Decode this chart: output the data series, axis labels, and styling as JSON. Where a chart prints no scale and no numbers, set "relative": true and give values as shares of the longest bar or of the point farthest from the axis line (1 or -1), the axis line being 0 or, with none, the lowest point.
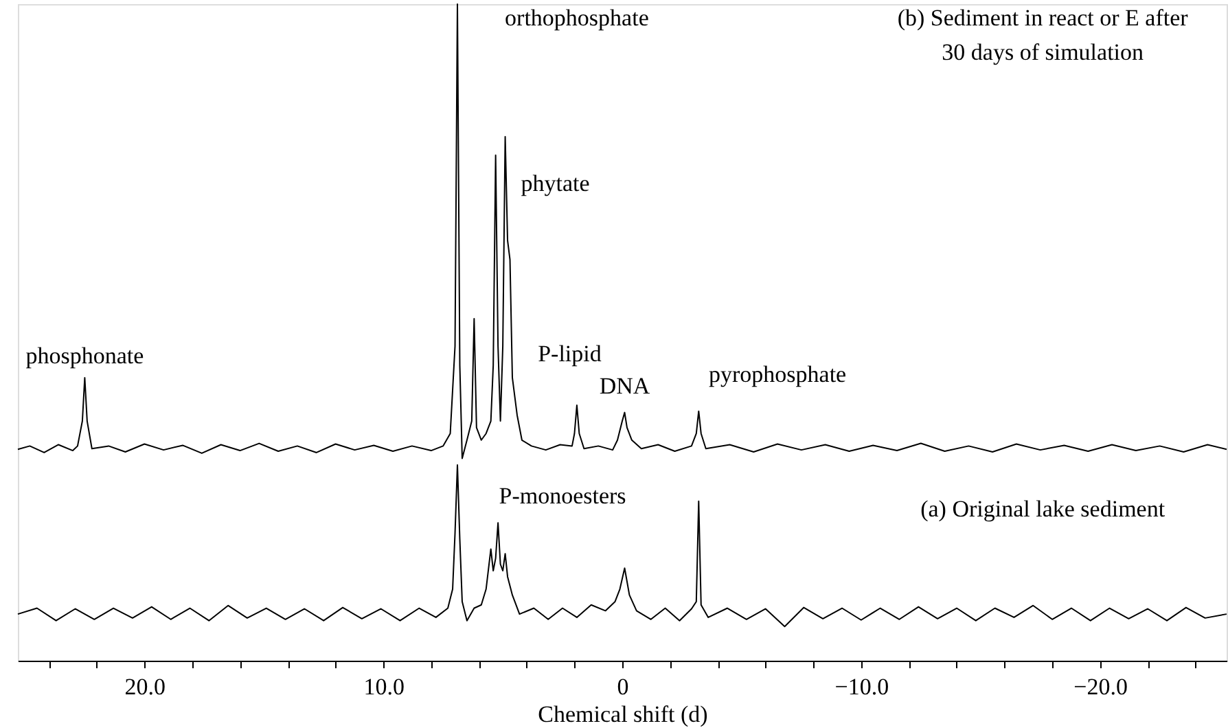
{
  "chart_data": {
    "type": "line",
    "relative": true,
    "xlabel": "Chemical shift (d)",
    "legend": false,
    "grid": false,
    "xlim": [
      25.3,
      -25.3
    ],
    "xticks": [
      {
        "value": 24,
        "label": null
      },
      {
        "value": 22,
        "label": null
      },
      {
        "value": 20,
        "label": "20.0"
      },
      {
        "value": 18,
        "label": null
      },
      {
        "value": 16,
        "label": null
      },
      {
        "value": 14,
        "label": null
      },
      {
        "value": 12,
        "label": null
      },
      {
        "value": 10,
        "label": "10.0"
      },
      {
        "value": 8,
        "label": null
      },
      {
        "value": 6,
        "label": null
      },
      {
        "value": 4,
        "label": null
      },
      {
        "value": 2,
        "label": null
      },
      0,
      {
        "value": -2,
        "label": null
      },
      {
        "value": -4,
        "label": null
      },
      {
        "value": -6,
        "label": null
      },
      {
        "value": -8,
        "label": null
      },
      {
        "value": -10,
        "label": "−10.0"
      },
      {
        "value": -12,
        "label": null
      },
      {
        "value": -14,
        "label": null
      },
      {
        "value": -16,
        "label": null
      },
      {
        "value": -18,
        "label": null
      },
      {
        "value": -20,
        "label": "−20.0"
      },
      {
        "value": -22,
        "label": null
      },
      {
        "value": -24,
        "label": null
      }
    ],
    "series": [
      {
        "color": "#000000",
        "x": [
          25.3,
          24.8,
          24.2,
          23.6,
          23.0,
          22.8,
          22.6,
          22.5,
          22.4,
          22.2,
          21.5,
          20.8,
          20.0,
          19.2,
          18.4,
          17.6,
          16.8,
          16.0,
          15.2,
          14.4,
          13.6,
          12.8,
          12.0,
          11.2,
          10.4,
          9.6,
          8.8,
          8.0,
          7.5,
          7.2,
          7.0,
          6.9,
          6.8,
          6.7,
          6.5,
          6.3,
          6.2,
          6.1,
          5.9,
          5.7,
          5.5,
          5.4,
          5.3,
          5.2,
          5.1,
          5.0,
          4.9,
          4.8,
          4.7,
          4.6,
          4.4,
          4.2,
          3.8,
          3.2,
          2.6,
          2.1,
          2.0,
          1.9,
          1.8,
          1.6,
          1.0,
          0.4,
          0.2,
          0.0,
          -0.1,
          -0.2,
          -0.4,
          -0.8,
          -1.5,
          -2.2,
          -2.9,
          -3.1,
          -3.2,
          -3.3,
          -3.5,
          -4.5,
          -5.5,
          -6.5,
          -7.5,
          -8.5,
          -9.5,
          -10.5,
          -11.5,
          -12.5,
          -13.5,
          -14.5,
          -15.5,
          -16.5,
          -17.5,
          -18.5,
          -19.5,
          -20.5,
          -21.5,
          -22.5,
          -23.5,
          -24.5,
          -25.3
        ],
        "values": [
          0.322,
          0.327,
          0.317,
          0.329,
          0.32,
          0.327,
          0.365,
          0.431,
          0.365,
          0.323,
          0.327,
          0.318,
          0.33,
          0.321,
          0.328,
          0.316,
          0.329,
          0.32,
          0.331,
          0.319,
          0.327,
          0.317,
          0.33,
          0.321,
          0.328,
          0.319,
          0.327,
          0.32,
          0.327,
          0.346,
          0.479,
          1.0,
          0.45,
          0.308,
          0.336,
          0.365,
          0.521,
          0.355,
          0.336,
          0.346,
          0.365,
          0.45,
          0.77,
          0.479,
          0.365,
          0.479,
          0.798,
          0.64,
          0.611,
          0.431,
          0.374,
          0.336,
          0.327,
          0.321,
          0.329,
          0.327,
          0.346,
          0.389,
          0.346,
          0.323,
          0.327,
          0.321,
          0.336,
          0.365,
          0.378,
          0.355,
          0.336,
          0.323,
          0.329,
          0.319,
          0.327,
          0.346,
          0.38,
          0.346,
          0.323,
          0.329,
          0.318,
          0.33,
          0.321,
          0.329,
          0.319,
          0.328,
          0.32,
          0.331,
          0.319,
          0.327,
          0.318,
          0.33,
          0.321,
          0.328,
          0.319,
          0.329,
          0.32,
          0.327,
          0.318,
          0.329,
          0.322
        ]
      },
      {
        "color": "#000000",
        "x": [
          25.3,
          24.5,
          23.7,
          22.9,
          22.1,
          21.3,
          20.5,
          19.7,
          18.9,
          18.1,
          17.3,
          16.5,
          15.7,
          14.9,
          14.1,
          13.3,
          12.5,
          11.7,
          10.9,
          10.1,
          9.3,
          8.5,
          7.8,
          7.3,
          7.1,
          7.0,
          6.9,
          6.8,
          6.7,
          6.5,
          6.2,
          5.9,
          5.7,
          5.5,
          5.4,
          5.3,
          5.2,
          5.1,
          5.0,
          4.9,
          4.8,
          4.6,
          4.3,
          3.7,
          3.1,
          2.5,
          1.9,
          1.3,
          0.7,
          0.3,
          0.1,
          -0.1,
          -0.3,
          -0.6,
          -1.2,
          -1.8,
          -2.4,
          -2.9,
          -3.1,
          -3.2,
          -3.3,
          -3.6,
          -4.4,
          -5.2,
          -6.0,
          -6.8,
          -7.6,
          -8.4,
          -9.2,
          -10.0,
          -10.8,
          -11.6,
          -12.4,
          -13.2,
          -14.0,
          -14.8,
          -15.6,
          -16.4,
          -17.2,
          -18.0,
          -18.8,
          -19.6,
          -20.4,
          -21.2,
          -22.0,
          -22.8,
          -23.6,
          -24.4,
          -25.3
        ],
        "values": [
          0.071,
          0.08,
          0.061,
          0.079,
          0.063,
          0.08,
          0.065,
          0.082,
          0.063,
          0.08,
          0.061,
          0.084,
          0.065,
          0.08,
          0.063,
          0.079,
          0.061,
          0.081,
          0.064,
          0.079,
          0.061,
          0.08,
          0.066,
          0.08,
          0.109,
          0.194,
          0.298,
          0.185,
          0.09,
          0.061,
          0.08,
          0.085,
          0.109,
          0.17,
          0.137,
          0.156,
          0.21,
          0.147,
          0.137,
          0.163,
          0.128,
          0.1,
          0.071,
          0.08,
          0.063,
          0.08,
          0.066,
          0.085,
          0.076,
          0.09,
          0.109,
          0.141,
          0.1,
          0.076,
          0.063,
          0.08,
          0.061,
          0.079,
          0.09,
          0.243,
          0.085,
          0.066,
          0.08,
          0.063,
          0.079,
          0.052,
          0.081,
          0.064,
          0.08,
          0.062,
          0.08,
          0.063,
          0.082,
          0.064,
          0.08,
          0.061,
          0.08,
          0.066,
          0.084,
          0.063,
          0.08,
          0.061,
          0.08,
          0.064,
          0.079,
          0.061,
          0.081,
          0.065,
          0.071
        ]
      }
    ],
    "annotations": [
      "phosphonate",
      "orthophosphate",
      "phytate",
      "P-lipid",
      "DNA",
      "pyrophosphate",
      "P-monoesters",
      "(b) Sediment in react or E after",
      "30 days of simulation",
      "(a) Original lake sediment"
    ]
  }
}
